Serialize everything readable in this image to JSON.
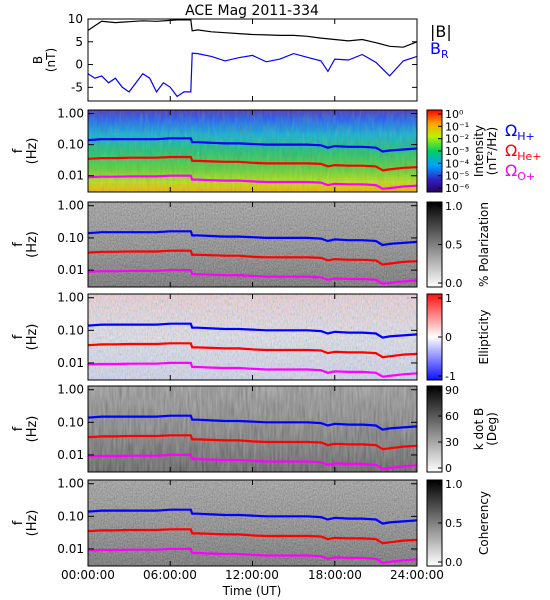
{
  "title": "ACE Mag 2011-334",
  "x_axis": {
    "label": "Time (UT)",
    "ticks": [
      "00:00:00",
      "06:00:00",
      "12:00:00",
      "18:00:00",
      "24:00:00"
    ]
  },
  "colors": {
    "total_field": "#000000",
    "radial_field": "#0000ff",
    "h_plus": "#0000ff",
    "he_plus": "#ff0000",
    "o_plus": "#ff00ff"
  },
  "chart_data": [
    {
      "type": "line",
      "panel": "magnetic-field",
      "ylabel": "B\n(nT)",
      "ylim": [
        -8,
        10
      ],
      "yticks": [
        "10",
        "5",
        "0",
        "-5"
      ],
      "xlim": [
        0,
        24
      ],
      "series": [
        {
          "name": "|B|",
          "x": [
            0,
            0.5,
            1,
            2,
            3,
            4,
            5,
            6,
            6.5,
            7,
            7.5,
            7.6,
            8,
            9,
            10,
            11,
            12,
            13,
            14,
            15,
            16,
            17,
            18,
            19,
            20,
            21,
            22,
            23,
            24
          ],
          "values": [
            7.5,
            8.5,
            9.5,
            9.2,
            9.4,
            9.6,
            9.5,
            9.7,
            9.8,
            9.8,
            9.8,
            7.4,
            7.6,
            7.2,
            7.0,
            6.8,
            6.6,
            6.5,
            6.4,
            6.4,
            6.2,
            5.8,
            5.5,
            5.2,
            5.5,
            4.8,
            4.0,
            3.8,
            5.0
          ]
        },
        {
          "name": "B_R",
          "x": [
            0,
            0.5,
            1,
            1.5,
            2,
            2.5,
            3,
            3.5,
            4,
            4.5,
            5,
            5.5,
            6,
            6.5,
            7,
            7.5,
            7.6,
            8,
            9,
            10,
            11,
            12,
            13,
            14,
            15,
            16,
            17,
            17.5,
            18,
            19,
            20,
            21,
            22,
            23,
            24
          ],
          "values": [
            -2,
            -3,
            -2.5,
            -4,
            -3,
            -5,
            -6,
            -4,
            -2,
            -3,
            -6,
            -4,
            -5,
            -7,
            -6,
            -6,
            2.5,
            2.4,
            1.8,
            0.8,
            1.5,
            2.0,
            0.6,
            1.2,
            2.4,
            1.6,
            0.8,
            -1.5,
            1.2,
            1.0,
            2.2,
            0.5,
            -2.5,
            0.8,
            1.8
          ]
        }
      ],
      "legend": [
        "|B|",
        "B_R"
      ]
    },
    {
      "type": "heatmap",
      "panel": "power-spectrum",
      "ylabel": "f\n(Hz)",
      "yticks": [
        "1.00",
        "0.10",
        "0.01"
      ],
      "colorbar_label": "Intensity\n(nT²/Hz)",
      "colorbar_ticks": [
        "10⁰",
        "10⁻¹",
        "10⁻²",
        "10⁻³",
        "10⁻⁴",
        "10⁻⁵",
        "10⁻⁶"
      ],
      "legend": [
        "Ω_H+",
        "Ω_He+",
        "Ω_O+"
      ]
    },
    {
      "type": "heatmap",
      "panel": "polarization",
      "ylabel": "f\n(Hz)",
      "yticks": [
        "1.00",
        "0.10",
        "0.01"
      ],
      "colorbar_label": "% Polarization",
      "colorbar_ticks": [
        "1.0",
        "0.5",
        "0.0"
      ]
    },
    {
      "type": "heatmap",
      "panel": "ellipticity",
      "ylabel": "f\n(Hz)",
      "yticks": [
        "1.00",
        "0.10",
        "0.01"
      ],
      "colorbar_label": "Ellipticity",
      "colorbar_ticks": [
        "1",
        "0",
        "-1"
      ]
    },
    {
      "type": "heatmap",
      "panel": "k-dot-b",
      "ylabel": "f\n(Hz)",
      "yticks": [
        "1.00",
        "0.10",
        "0.01"
      ],
      "colorbar_label": "k dot B\n(Deg)",
      "colorbar_ticks": [
        "90",
        "60",
        "30",
        "0"
      ]
    },
    {
      "type": "heatmap",
      "panel": "coherency",
      "ylabel": "f\n(Hz)",
      "yticks": [
        "1.00",
        "0.10",
        "0.01"
      ],
      "colorbar_label": "Coherency",
      "colorbar_ticks": [
        "1.0",
        "0.5",
        "0.0"
      ]
    }
  ],
  "gyrofrequency_curves": {
    "x": [
      0,
      1,
      2,
      3,
      4,
      5,
      6,
      7,
      7.5,
      7.6,
      8,
      9,
      10,
      11,
      12,
      13,
      14,
      15,
      16,
      17,
      17.5,
      18,
      19,
      20,
      21,
      21.5,
      22,
      23,
      24
    ],
    "h_plus_hz": [
      0.14,
      0.15,
      0.15,
      0.15,
      0.15,
      0.15,
      0.16,
      0.16,
      0.16,
      0.12,
      0.12,
      0.115,
      0.11,
      0.11,
      0.105,
      0.1,
      0.1,
      0.1,
      0.1,
      0.095,
      0.08,
      0.09,
      0.085,
      0.085,
      0.08,
      0.06,
      0.065,
      0.07,
      0.075
    ],
    "he_plus_hz": [
      0.035,
      0.037,
      0.037,
      0.038,
      0.038,
      0.038,
      0.04,
      0.04,
      0.04,
      0.03,
      0.03,
      0.029,
      0.028,
      0.028,
      0.026,
      0.025,
      0.025,
      0.025,
      0.025,
      0.024,
      0.02,
      0.022,
      0.021,
      0.021,
      0.02,
      0.015,
      0.016,
      0.018,
      0.019
    ],
    "o_plus_hz": [
      0.009,
      0.0093,
      0.0093,
      0.0095,
      0.0095,
      0.0095,
      0.01,
      0.01,
      0.01,
      0.0075,
      0.0075,
      0.0072,
      0.007,
      0.007,
      0.0066,
      0.0063,
      0.0063,
      0.0063,
      0.0063,
      0.006,
      0.005,
      0.0055,
      0.0053,
      0.0053,
      0.005,
      0.0038,
      0.004,
      0.0045,
      0.0048
    ]
  }
}
